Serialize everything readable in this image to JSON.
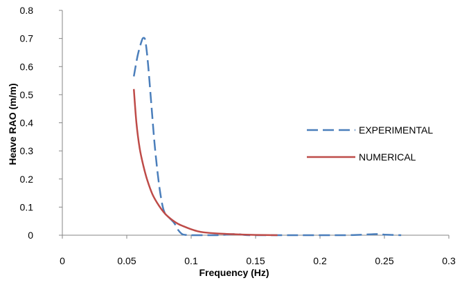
{
  "chart_data": {
    "type": "line",
    "title": "",
    "xlabel": "Frequency (Hz)",
    "ylabel": "Heave RAO (m/m)",
    "xlim": [
      0,
      0.3
    ],
    "ylim": [
      0,
      0.8
    ],
    "x_ticks": [
      "0",
      "0.05",
      "0.1",
      "0.15",
      "0.2",
      "0.25",
      "0.3"
    ],
    "y_ticks": [
      "0",
      "0.1",
      "0.2",
      "0.3",
      "0.4",
      "0.5",
      "0.6",
      "0.7",
      "0.8"
    ],
    "grid": false,
    "legend_position": "right",
    "series": [
      {
        "name": "EXPERIMENTAL",
        "color": "#4A7EBB",
        "style": "dashed",
        "points": [
          [
            0.0555,
            0.565
          ],
          [
            0.0585,
            0.64
          ],
          [
            0.0615,
            0.69
          ],
          [
            0.063,
            0.702
          ],
          [
            0.0645,
            0.69
          ],
          [
            0.0665,
            0.61
          ],
          [
            0.069,
            0.47
          ],
          [
            0.0715,
            0.33
          ],
          [
            0.074,
            0.22
          ],
          [
            0.076,
            0.15
          ],
          [
            0.078,
            0.1
          ],
          [
            0.08,
            0.075
          ],
          [
            0.083,
            0.062
          ],
          [
            0.086,
            0.048
          ],
          [
            0.088,
            0.035
          ],
          [
            0.09,
            0.018
          ],
          [
            0.093,
            0.004
          ],
          [
            0.096,
            0.001
          ],
          [
            0.1,
            0.0
          ],
          [
            0.12,
            0.0
          ],
          [
            0.135,
            0.004
          ],
          [
            0.145,
            0.0
          ],
          [
            0.18,
            0.0
          ],
          [
            0.22,
            0.0
          ],
          [
            0.245,
            0.004
          ],
          [
            0.25,
            0.002
          ],
          [
            0.263,
            0.0
          ]
        ]
      },
      {
        "name": "NUMERICAL",
        "color": "#BE4B48",
        "style": "solid",
        "points": [
          [
            0.0555,
            0.52
          ],
          [
            0.0575,
            0.4
          ],
          [
            0.06,
            0.31
          ],
          [
            0.063,
            0.245
          ],
          [
            0.066,
            0.195
          ],
          [
            0.07,
            0.145
          ],
          [
            0.075,
            0.105
          ],
          [
            0.08,
            0.075
          ],
          [
            0.085,
            0.055
          ],
          [
            0.09,
            0.04
          ],
          [
            0.095,
            0.03
          ],
          [
            0.1,
            0.021
          ],
          [
            0.105,
            0.014
          ],
          [
            0.11,
            0.01
          ],
          [
            0.12,
            0.006
          ],
          [
            0.135,
            0.003
          ],
          [
            0.15,
            0.001
          ],
          [
            0.167,
            0.0
          ]
        ]
      }
    ]
  }
}
